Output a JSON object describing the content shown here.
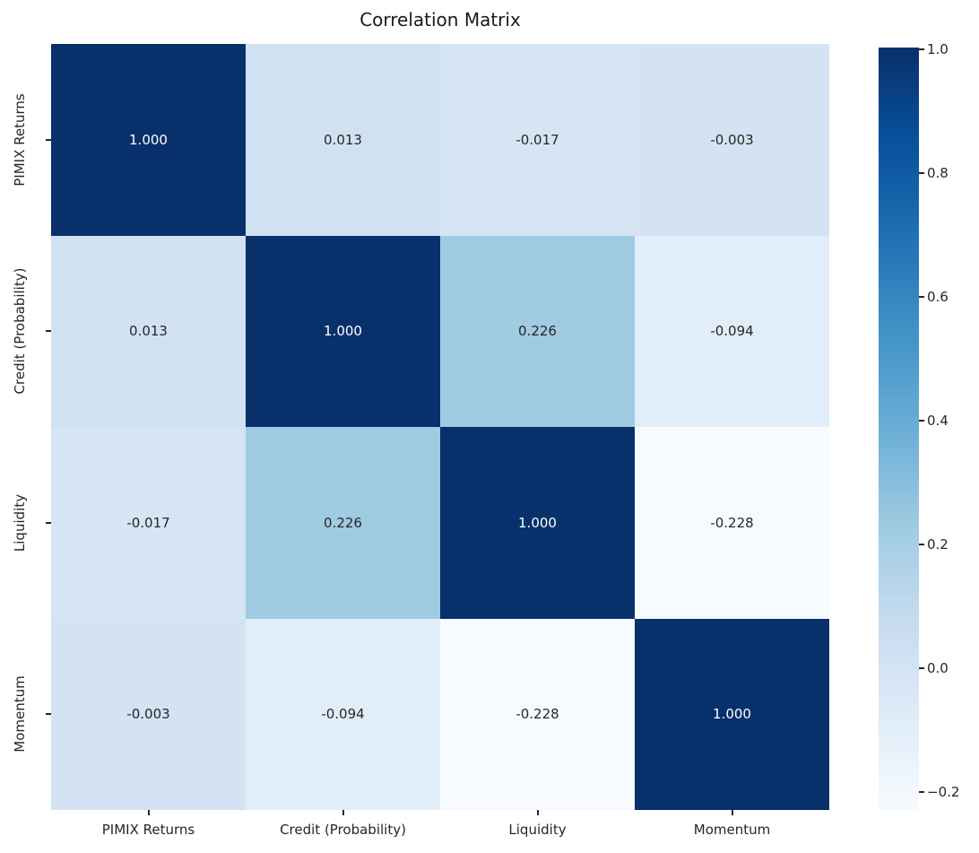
{
  "title": "Correlation Matrix",
  "chart_data": {
    "type": "heatmap",
    "categories": [
      "PIMIX Returns",
      "Credit (Probability)",
      "Liquidity",
      "Momentum"
    ],
    "matrix": [
      [
        1.0,
        0.013,
        -0.017,
        -0.003
      ],
      [
        0.013,
        1.0,
        0.226,
        -0.094
      ],
      [
        -0.017,
        0.226,
        1.0,
        -0.228
      ],
      [
        -0.003,
        -0.094,
        -0.228,
        1.0
      ]
    ],
    "value_decimals": 3,
    "colormap": "Blues",
    "vmin": -0.229,
    "vmax": 1.0,
    "colorbar": {
      "position": "right",
      "tick_labels": [
        "1.0",
        "0.8",
        "0.6",
        "0.4",
        "0.2",
        "0.0",
        "−0.2"
      ],
      "tick_values": [
        1.0,
        0.8,
        0.6,
        0.4,
        0.2,
        0.0,
        -0.2
      ]
    },
    "grid": false
  },
  "colors": {
    "colormap_anchors": [
      "#f7fbff",
      "#deebf7",
      "#c6dbef",
      "#9ecae1",
      "#6baed6",
      "#4292c6",
      "#2171b5",
      "#08519c",
      "#08306b"
    ],
    "annotation_dark_text": "#262626",
    "annotation_light_text": "#ffffff",
    "background": "#ffffff"
  }
}
